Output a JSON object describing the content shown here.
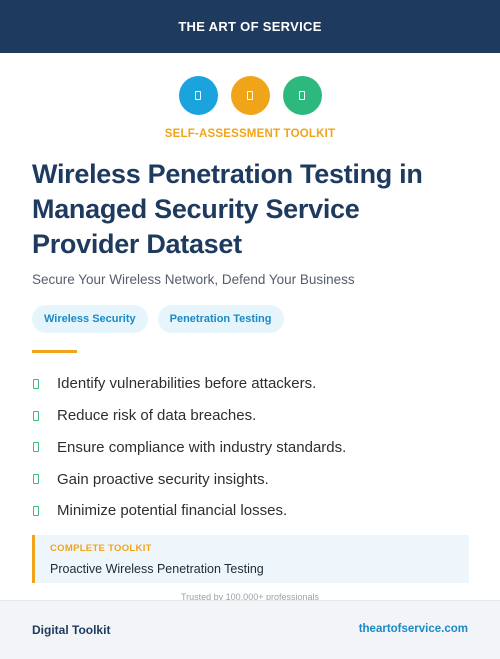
{
  "header": {
    "brand": "THE ART OF SERVICE"
  },
  "icons": [
    {
      "name": "blue-badge-icon",
      "color": "#1aa3dd"
    },
    {
      "name": "orange-badge-icon",
      "color": "#f0a419"
    },
    {
      "name": "green-badge-icon",
      "color": "#2db87d"
    }
  ],
  "eyebrow": "SELF-ASSESSMENT TOOLKIT",
  "title": {
    "line1": "Wireless Penetration Testing in",
    "line2": "Managed Security Service",
    "line3": "Provider Dataset"
  },
  "subtitle": "Secure Your Wireless Network, Defend Your Business",
  "tags": [
    "Wireless Security",
    "Penetration Testing"
  ],
  "benefits": [
    "Identify vulnerabilities before attackers.",
    "Reduce risk of data breaches.",
    "Ensure compliance with industry standards.",
    "Gain proactive security insights.",
    "Minimize potential financial losses."
  ],
  "toolkit": {
    "label": "COMPLETE TOOLKIT",
    "name": "Proactive Wireless Penetration Testing"
  },
  "trusted": "Trusted by 100,000+ professionals",
  "footer": {
    "left": "Digital Toolkit",
    "right": "theartofservice.com"
  },
  "colors": {
    "navy": "#1e3a5f",
    "accent_orange": "#f0a419",
    "accent_blue": "#1a8ac7",
    "check_green": "#3dbd7d"
  }
}
